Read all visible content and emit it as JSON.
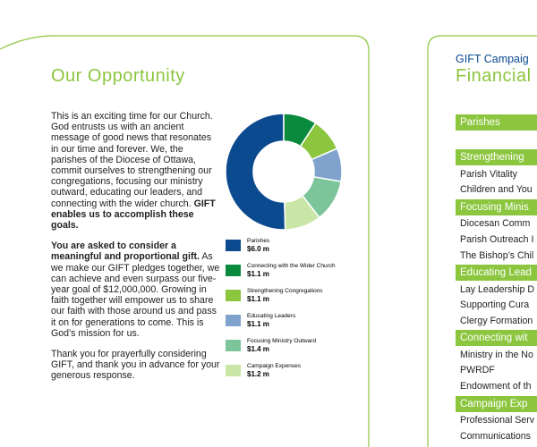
{
  "left": {
    "title": "Our Opportunity",
    "paragraphs": [
      [
        {
          "text": "This is an exciting time for our Church. God entrusts us with an ancient message of good news that resonates in our time and forever. We, the parishes of the Diocese of Ottawa, commit ourselves to strengthening our congregations, focusing our ministry outward, educating our leaders, and connecting with the wider church. ",
          "bold": false
        },
        {
          "text": "GIFT enables us to accomplish these goals.",
          "bold": true
        }
      ],
      [
        {
          "text": "You are asked to consider a meaningful and proportional gift.",
          "bold": true
        },
        {
          "text": " As we make our GIFT pledges together, we can achieve and even surpass our five-year goal of $12,000,000. Growing in faith together will empower us to share our faith with those around us and pass it on for generations to come. This is God’s mission for us.",
          "bold": false
        }
      ],
      [
        {
          "text": "Thank you for prayerfully considering GIFT, and thank you in advance for your generous response.",
          "bold": false
        }
      ]
    ],
    "chart_data": {
      "type": "donut",
      "series": [
        {
          "name": "Parishes",
          "color": "#0b4a8f",
          "values": [
            6.0
          ],
          "value_labels": [
            "$6.0 m"
          ]
        },
        {
          "name": "Connecting with the Wider Church",
          "color": "#0a8a3c",
          "values": [
            1.1
          ],
          "value_labels": [
            "$1.1 m"
          ]
        },
        {
          "name": "Strengthening Congregations",
          "color": "#8cc63f",
          "values": [
            1.1
          ],
          "value_labels": [
            "$1.1 m"
          ]
        },
        {
          "name": "Educating Leaders",
          "color": "#7fa3cc",
          "values": [
            1.1
          ],
          "value_labels": [
            "$1.1 m"
          ]
        },
        {
          "name": "Focusing Ministry Outward",
          "color": "#7cc49a",
          "values": [
            1.4
          ],
          "value_labels": [
            "$1.4 m"
          ]
        },
        {
          "name": "Campaign Expenses",
          "color": "#c9e6a6",
          "values": [
            1.2
          ],
          "value_labels": [
            "$1.2 m"
          ]
        }
      ]
    }
  },
  "right": {
    "subtitle": "GIFT Campaig",
    "title": "Financial",
    "rows": [
      {
        "text": "Parishes",
        "header": true
      },
      {
        "text": "Strengthening",
        "header": true
      },
      {
        "text": "Parish Vitality",
        "header": false
      },
      {
        "text": "Children and You",
        "header": false
      },
      {
        "text": "Focusing Minis",
        "header": true
      },
      {
        "text": "Diocesan Comm",
        "header": false
      },
      {
        "text": "Parish Outreach I",
        "header": false
      },
      {
        "text": "The Bishop’s Chil",
        "header": false
      },
      {
        "text": "Educating Lead",
        "header": true
      },
      {
        "text": "Lay Leadership D",
        "header": false
      },
      {
        "text": "Supporting Cura",
        "header": false
      },
      {
        "text": "Clergy Formation",
        "header": false
      },
      {
        "text": "Connecting wit",
        "header": true
      },
      {
        "text": "Ministry in the No",
        "header": false
      },
      {
        "text": "PWRDF",
        "header": false
      },
      {
        "text": "Endowment of th",
        "header": false
      },
      {
        "text": "Campaign Exp",
        "header": true
      },
      {
        "text": "Professional Serv",
        "header": false
      },
      {
        "text": "Communications",
        "header": false
      }
    ]
  }
}
